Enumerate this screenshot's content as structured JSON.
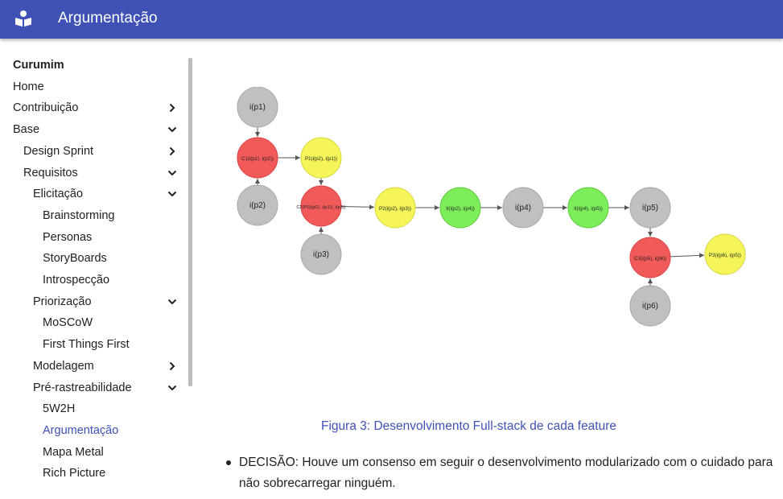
{
  "header": {
    "title": "Argumentação",
    "logo_icon": "book-reader-icon",
    "color": "#3f51b5"
  },
  "sidebar": {
    "items": [
      {
        "label": "Curumim",
        "level": 0,
        "head": true
      },
      {
        "label": "Home",
        "level": 0
      },
      {
        "label": "Contribuição",
        "level": 0,
        "chevron": "right"
      },
      {
        "label": "Base",
        "level": 0,
        "chevron": "down"
      },
      {
        "label": "Design Sprint",
        "level": 1,
        "chevron": "right"
      },
      {
        "label": "Requisitos",
        "level": 1,
        "chevron": "down"
      },
      {
        "label": "Elicitação",
        "level": 2,
        "chevron": "down"
      },
      {
        "label": "Brainstorming",
        "level": 3
      },
      {
        "label": "Personas",
        "level": 3
      },
      {
        "label": "StoryBoards",
        "level": 3
      },
      {
        "label": "Introspecção",
        "level": 3
      },
      {
        "label": "Priorização",
        "level": 2,
        "chevron": "down"
      },
      {
        "label": "MoSCoW",
        "level": 3
      },
      {
        "label": "First Things First",
        "level": 3
      },
      {
        "label": "Modelagem",
        "level": 2,
        "chevron": "right"
      },
      {
        "label": "Pré-rastreabilidade",
        "level": 2,
        "chevron": "down"
      },
      {
        "label": "5W2H",
        "level": 3
      },
      {
        "label": "Argumentação",
        "level": 3,
        "active": true
      },
      {
        "label": "Mapa Metal",
        "level": 3
      },
      {
        "label": "Rich Picture",
        "level": 3
      }
    ]
  },
  "diagram": {
    "colors": {
      "gray": "#c0c0c0",
      "red": "#f25a5a",
      "yellow": "#f5f55a",
      "green": "#7eed5a"
    },
    "nodes": [
      {
        "id": "n1",
        "label": "i(p1)",
        "color": "gray"
      },
      {
        "id": "n2",
        "label": "C1(i(p1), i(p2))",
        "color": "red"
      },
      {
        "id": "n3",
        "label": "i(p2)",
        "color": "gray"
      },
      {
        "id": "n4",
        "label": "P1(i(p2), i(p1))",
        "color": "yellow"
      },
      {
        "id": "n5",
        "label": "C2(P1(i(p2), i(p1)), i(p3))",
        "color": "red"
      },
      {
        "id": "n6",
        "label": "i(p3)",
        "color": "gray"
      },
      {
        "id": "n7",
        "label": "P2(i(p2), i(p3))",
        "color": "yellow"
      },
      {
        "id": "n8",
        "label": "It(i(p2), i(p4))",
        "color": "green"
      },
      {
        "id": "n9",
        "label": "i(p4)",
        "color": "gray"
      },
      {
        "id": "n10",
        "label": "It(i(p4), i(p5))",
        "color": "green"
      },
      {
        "id": "n11",
        "label": "i(p5)",
        "color": "gray"
      },
      {
        "id": "n12",
        "label": "C3(i(p5), i(p6))",
        "color": "red"
      },
      {
        "id": "n13",
        "label": "i(p6)",
        "color": "gray"
      },
      {
        "id": "n14",
        "label": "P3(i(p6), i(p5))",
        "color": "yellow"
      }
    ],
    "edges": [
      [
        "n1",
        "n2"
      ],
      [
        "n3",
        "n2"
      ],
      [
        "n2",
        "n4"
      ],
      [
        "n4",
        "n5"
      ],
      [
        "n6",
        "n5"
      ],
      [
        "n5",
        "n7"
      ],
      [
        "n7",
        "n8"
      ],
      [
        "n8",
        "n9"
      ],
      [
        "n9",
        "n10"
      ],
      [
        "n10",
        "n11"
      ],
      [
        "n11",
        "n12"
      ],
      [
        "n13",
        "n12"
      ],
      [
        "n12",
        "n14"
      ]
    ]
  },
  "caption": "Figura 3: Desenvolvimento Full-stack de cada feature",
  "bullets": [
    "DECISÃO: Houve um consenso em seguir o desenvolvimento modularizado com o cuidado para não sobrecarregar ninguém."
  ]
}
